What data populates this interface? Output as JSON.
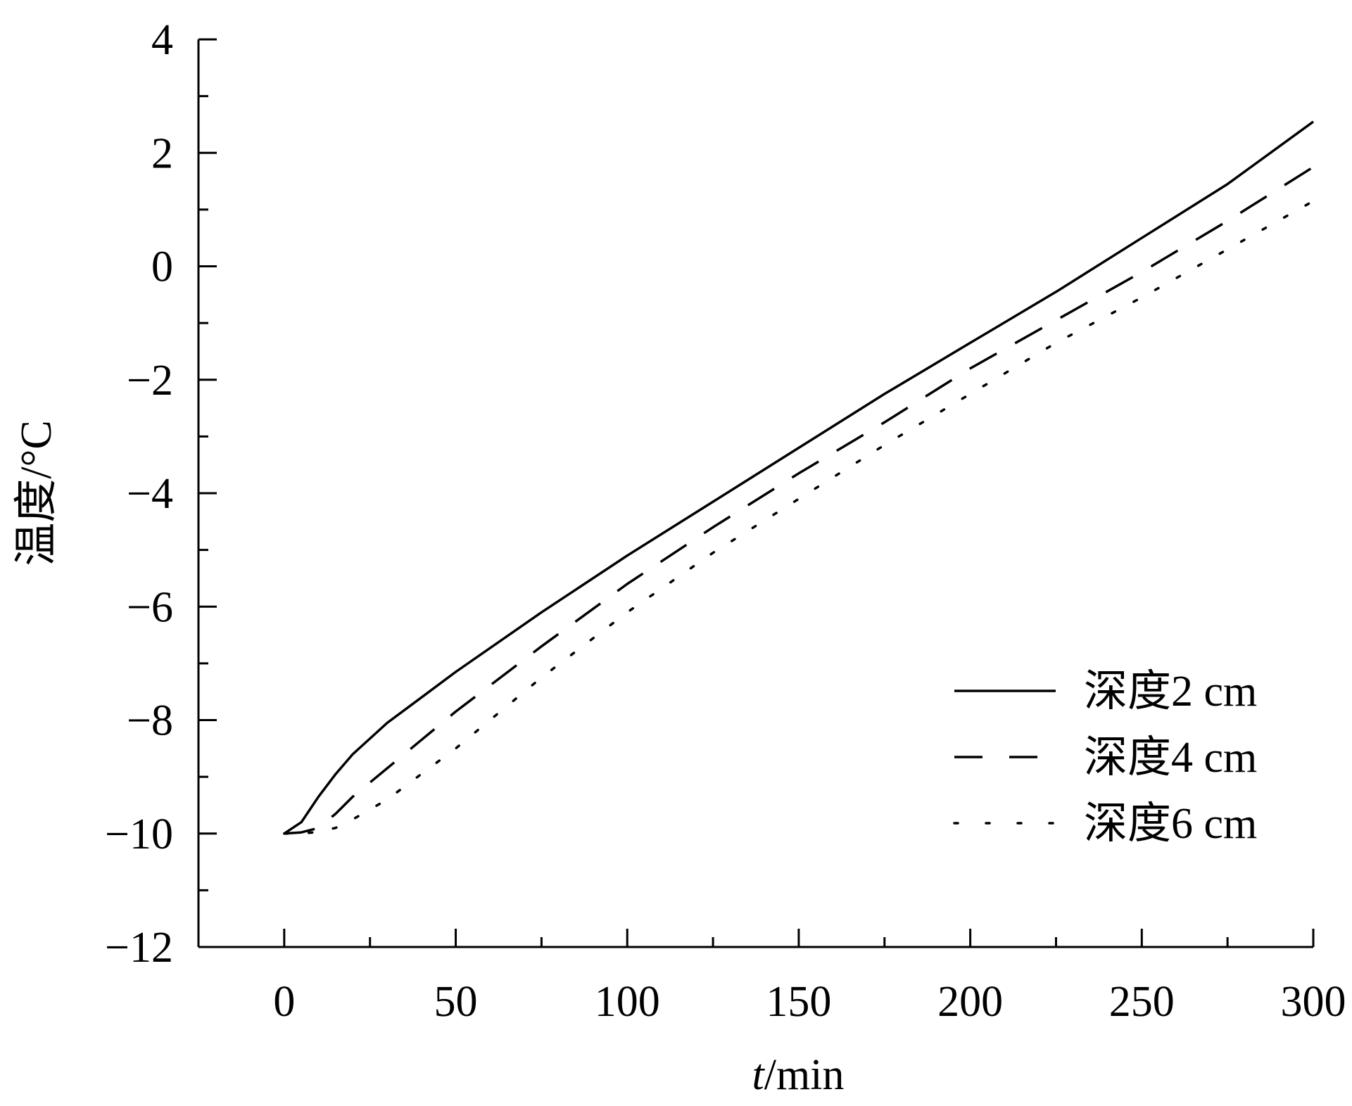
{
  "chart_data": {
    "type": "line",
    "title": "",
    "xlabel_italic": "t",
    "xlabel_rest": "/min",
    "ylabel": "温度/°C",
    "xlim": [
      -25,
      300
    ],
    "ylim": [
      -12,
      4
    ],
    "xticks": [
      0,
      50,
      100,
      150,
      200,
      250,
      300
    ],
    "xtick_labels": [
      "0",
      "50",
      "100",
      "150",
      "200",
      "250",
      "300"
    ],
    "yticks": [
      -12,
      -10,
      -8,
      -6,
      -4,
      -2,
      0,
      2,
      4
    ],
    "ytick_labels": [
      "−12",
      "−10",
      "−8",
      "−6",
      "−4",
      "−2",
      "0",
      "2",
      "4"
    ],
    "legend_position": "bottom-right",
    "grid": false,
    "series": [
      {
        "name": "深度2 cm",
        "style": "solid",
        "color": "#000000",
        "points": [
          [
            0,
            -10
          ],
          [
            5,
            -9.8
          ],
          [
            10,
            -9.35
          ],
          [
            15,
            -8.95
          ],
          [
            20,
            -8.6
          ],
          [
            30,
            -8.05
          ],
          [
            40,
            -7.6
          ],
          [
            50,
            -7.15
          ],
          [
            75,
            -6.1
          ],
          [
            100,
            -5.1
          ],
          [
            125,
            -4.15
          ],
          [
            150,
            -3.2
          ],
          [
            175,
            -2.25
          ],
          [
            200,
            -1.35
          ],
          [
            225,
            -0.45
          ],
          [
            250,
            0.5
          ],
          [
            275,
            1.45
          ],
          [
            300,
            2.55
          ]
        ]
      },
      {
        "name": "深度4 cm",
        "style": "dashed",
        "color": "#000000",
        "points": [
          [
            0,
            -10
          ],
          [
            5,
            -9.98
          ],
          [
            10,
            -9.9
          ],
          [
            15,
            -9.65
          ],
          [
            20,
            -9.35
          ],
          [
            30,
            -8.85
          ],
          [
            40,
            -8.35
          ],
          [
            50,
            -7.85
          ],
          [
            75,
            -6.7
          ],
          [
            100,
            -5.6
          ],
          [
            125,
            -4.6
          ],
          [
            150,
            -3.65
          ],
          [
            175,
            -2.75
          ],
          [
            200,
            -1.8
          ],
          [
            225,
            -0.95
          ],
          [
            250,
            -0.1
          ],
          [
            275,
            0.8
          ],
          [
            300,
            1.75
          ]
        ]
      },
      {
        "name": "深度6 cm",
        "style": "dotted",
        "color": "#000000",
        "points": [
          [
            0,
            -10
          ],
          [
            5,
            -10
          ],
          [
            10,
            -9.97
          ],
          [
            15,
            -9.9
          ],
          [
            20,
            -9.75
          ],
          [
            30,
            -9.4
          ],
          [
            40,
            -8.95
          ],
          [
            50,
            -8.5
          ],
          [
            75,
            -7.25
          ],
          [
            100,
            -6.1
          ],
          [
            125,
            -5.05
          ],
          [
            150,
            -4.1
          ],
          [
            175,
            -3.15
          ],
          [
            200,
            -2.25
          ],
          [
            225,
            -1.35
          ],
          [
            250,
            -0.55
          ],
          [
            275,
            0.3
          ],
          [
            300,
            1.15
          ]
        ]
      }
    ]
  }
}
